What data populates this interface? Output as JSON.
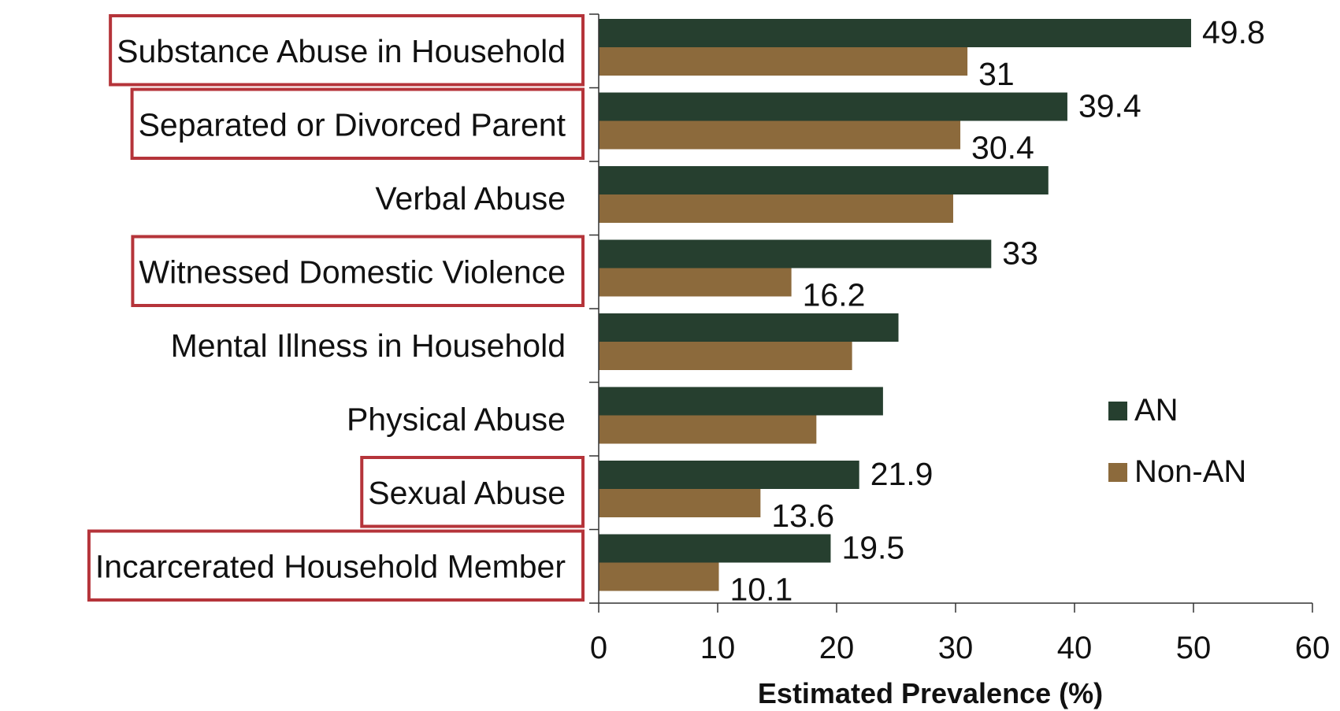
{
  "chart_data": {
    "type": "bar",
    "orientation": "horizontal",
    "categories": [
      "Substance Abuse in Household",
      "Separated or Divorced Parent",
      "Verbal Abuse",
      "Witnessed Domestic Violence",
      "Mental Illness in Household",
      "Physical Abuse",
      "Sexual Abuse",
      "Incarcerated Household Member"
    ],
    "highlighted": [
      true,
      true,
      false,
      true,
      false,
      false,
      true,
      true
    ],
    "series": [
      {
        "name": "AN",
        "color": "#263f2f",
        "values": [
          49.8,
          39.4,
          37.8,
          33,
          25.2,
          23.9,
          21.9,
          19.5
        ],
        "labels": [
          "49.8",
          "39.4",
          "",
          "33",
          "",
          "",
          "21.9",
          "19.5"
        ]
      },
      {
        "name": "Non-AN",
        "color": "#8c6a3c",
        "values": [
          31,
          30.4,
          29.8,
          16.2,
          21.3,
          18.3,
          13.6,
          10.1
        ],
        "labels": [
          "31",
          "30.4",
          "",
          "16.2",
          "",
          "",
          "13.6",
          "10.1"
        ]
      }
    ],
    "xlabel": "Estimated Prevalence (%)",
    "xlim": [
      0,
      60
    ],
    "xticks": [
      "0",
      "10",
      "20",
      "30",
      "40",
      "50",
      "60"
    ],
    "legend_position": "right",
    "highlight_color": "#b5343a",
    "grid": false
  }
}
